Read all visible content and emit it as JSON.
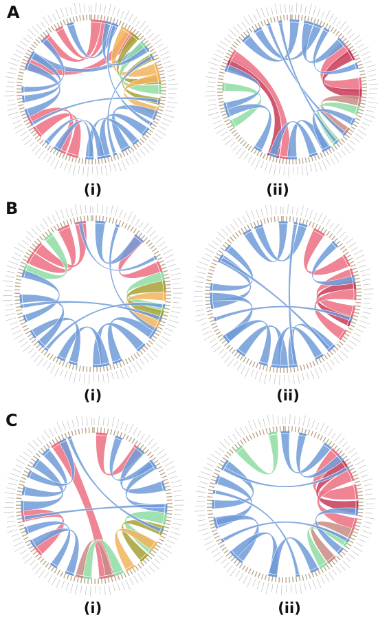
{
  "panels": [
    {
      "letter": "A",
      "diagrams": [
        {
          "label": "(i)",
          "ribbons": [
            {
              "from": 292,
              "to": 36,
              "w": 10,
              "c": "pink"
            },
            {
              "from": 300,
              "to": 50,
              "w": 7,
              "c": "blue"
            },
            {
              "from": 318,
              "to": 4,
              "w": 9,
              "c": "pink"
            },
            {
              "from": 332,
              "to": 12,
              "w": 7,
              "c": "pink"
            },
            {
              "from": 30,
              "to": 72,
              "w": 9,
              "c": "orange"
            },
            {
              "from": 40,
              "to": 82,
              "w": 7,
              "c": "olive"
            },
            {
              "from": 50,
              "to": 90,
              "w": 8,
              "c": "green"
            },
            {
              "from": 62,
              "to": 100,
              "w": 6,
              "c": "olive"
            },
            {
              "from": 80,
              "to": 108,
              "w": 7,
              "c": "orange"
            },
            {
              "from": 112,
              "to": 150,
              "w": 8,
              "c": "blue"
            },
            {
              "from": 128,
              "to": 168,
              "w": 8,
              "c": "blue"
            },
            {
              "from": 140,
              "to": 182,
              "w": 6,
              "c": "blue"
            },
            {
              "from": 196,
              "to": 232,
              "w": 10,
              "c": "pink"
            },
            {
              "from": 206,
              "to": 244,
              "w": 8,
              "c": "pink"
            },
            {
              "from": 172,
              "to": 210,
              "w": 6,
              "c": "blue"
            },
            {
              "from": 250,
              "to": 290,
              "w": 7,
              "c": "blue"
            },
            {
              "from": 262,
              "to": 300,
              "w": 6,
              "c": "blue"
            },
            {
              "from": 270,
              "to": 316,
              "w": 5,
              "c": "blue"
            },
            {
              "from": 342,
              "to": 20,
              "w": 6,
              "c": "blue"
            },
            {
              "from": 14,
              "to": 54,
              "w": 5,
              "c": "blue"
            },
            {
              "from": 20,
              "to": 120,
              "w": 3,
              "c": "blue"
            },
            {
              "from": 240,
              "to": 100,
              "w": 3,
              "c": "blue"
            },
            {
              "from": 160,
              "to": 62,
              "w": 3,
              "c": "blue"
            },
            {
              "from": 220,
              "to": 180,
              "w": 4,
              "c": "blue"
            }
          ]
        },
        {
          "label": "(ii)",
          "ribbons": [
            {
              "from": 52,
              "to": 86,
              "w": 12,
              "c": "pink"
            },
            {
              "from": 60,
              "to": 94,
              "w": 9,
              "c": "crimson"
            },
            {
              "from": 100,
              "to": 128,
              "w": 8,
              "c": "rose"
            },
            {
              "from": 108,
              "to": 140,
              "w": 7,
              "c": "green"
            },
            {
              "from": 292,
              "to": 196,
              "w": 10,
              "c": "crimson"
            },
            {
              "from": 300,
              "to": 186,
              "w": 9,
              "c": "pink"
            },
            {
              "from": 272,
              "to": 240,
              "w": 7,
              "c": "green"
            },
            {
              "from": 318,
              "to": 2,
              "w": 8,
              "c": "blue"
            },
            {
              "from": 330,
              "to": 22,
              "w": 7,
              "c": "blue"
            },
            {
              "from": 14,
              "to": 46,
              "w": 8,
              "c": "blue"
            },
            {
              "from": 150,
              "to": 180,
              "w": 8,
              "c": "blue"
            },
            {
              "from": 162,
              "to": 196,
              "w": 7,
              "c": "blue"
            },
            {
              "from": 210,
              "to": 250,
              "w": 7,
              "c": "blue"
            },
            {
              "from": 256,
              "to": 288,
              "w": 6,
              "c": "blue"
            },
            {
              "from": 340,
              "to": 130,
              "w": 3,
              "c": "blue"
            },
            {
              "from": 350,
              "to": 140,
              "w": 3,
              "c": "blue"
            },
            {
              "from": 118,
              "to": 150,
              "w": 6,
              "c": "blue"
            },
            {
              "from": 30,
              "to": 70,
              "w": 5,
              "c": "blue"
            }
          ]
        }
      ]
    },
    {
      "letter": "B",
      "diagrams": [
        {
          "label": "(i)",
          "ribbons": [
            {
              "from": 300,
              "to": 336,
              "w": 10,
              "c": "pink"
            },
            {
              "from": 310,
              "to": 350,
              "w": 9,
              "c": "pink"
            },
            {
              "from": 290,
              "to": 322,
              "w": 8,
              "c": "green"
            },
            {
              "from": 40,
              "to": 68,
              "w": 9,
              "c": "pink"
            },
            {
              "from": 76,
              "to": 102,
              "w": 8,
              "c": "green"
            },
            {
              "from": 84,
              "to": 108,
              "w": 9,
              "c": "olive"
            },
            {
              "from": 92,
              "to": 116,
              "w": 7,
              "c": "orange"
            },
            {
              "from": 6,
              "to": 40,
              "w": 8,
              "c": "blue"
            },
            {
              "from": 124,
              "to": 160,
              "w": 8,
              "c": "blue"
            },
            {
              "from": 138,
              "to": 176,
              "w": 8,
              "c": "blue"
            },
            {
              "from": 170,
              "to": 206,
              "w": 7,
              "c": "blue"
            },
            {
              "from": 196,
              "to": 236,
              "w": 7,
              "c": "blue"
            },
            {
              "from": 226,
              "to": 266,
              "w": 7,
              "c": "blue"
            },
            {
              "from": 250,
              "to": 286,
              "w": 6,
              "c": "blue"
            },
            {
              "from": 20,
              "to": 120,
              "w": 3,
              "c": "blue"
            },
            {
              "from": 260,
              "to": 110,
              "w": 3,
              "c": "blue"
            },
            {
              "from": 220,
              "to": 100,
              "w": 3,
              "c": "blue"
            },
            {
              "from": 350,
              "to": 60,
              "w": 3,
              "c": "blue"
            }
          ]
        },
        {
          "label": "(ii)",
          "ribbons": [
            {
              "from": 30,
              "to": 62,
              "w": 10,
              "c": "pink"
            },
            {
              "from": 74,
              "to": 104,
              "w": 10,
              "c": "pink"
            },
            {
              "from": 82,
              "to": 112,
              "w": 8,
              "c": "crimson"
            },
            {
              "from": 90,
              "to": 124,
              "w": 9,
              "c": "pink"
            },
            {
              "from": 46,
              "to": 78,
              "w": 6,
              "c": "blue"
            },
            {
              "from": 330,
              "to": 0,
              "w": 7,
              "c": "blue"
            },
            {
              "from": 340,
              "to": 16,
              "w": 7,
              "c": "blue"
            },
            {
              "from": 262,
              "to": 300,
              "w": 7,
              "c": "blue"
            },
            {
              "from": 276,
              "to": 310,
              "w": 6,
              "c": "blue"
            },
            {
              "from": 232,
              "to": 268,
              "w": 7,
              "c": "blue"
            },
            {
              "from": 180,
              "to": 216,
              "w": 8,
              "c": "blue"
            },
            {
              "from": 196,
              "to": 232,
              "w": 7,
              "c": "blue"
            },
            {
              "from": 138,
              "to": 172,
              "w": 7,
              "c": "blue"
            },
            {
              "from": 150,
              "to": 186,
              "w": 7,
              "c": "blue"
            },
            {
              "from": 10,
              "to": 170,
              "w": 3,
              "c": "blue"
            },
            {
              "from": 300,
              "to": 140,
              "w": 3,
              "c": "blue"
            },
            {
              "from": 250,
              "to": 110,
              "w": 3,
              "c": "blue"
            }
          ]
        }
      ]
    },
    {
      "letter": "C",
      "diagrams": [
        {
          "label": "(i)",
          "ribbons": [
            {
              "from": 330,
              "to": 170,
              "w": 12,
              "c": "pink"
            },
            {
              "from": 6,
              "to": 38,
              "w": 9,
              "c": "pink"
            },
            {
              "from": 232,
              "to": 262,
              "w": 10,
              "c": "pink"
            },
            {
              "from": 100,
              "to": 126,
              "w": 10,
              "c": "green"
            },
            {
              "from": 110,
              "to": 136,
              "w": 8,
              "c": "olive"
            },
            {
              "from": 124,
              "to": 150,
              "w": 8,
              "c": "orange"
            },
            {
              "from": 160,
              "to": 186,
              "w": 8,
              "c": "green"
            },
            {
              "from": 168,
              "to": 192,
              "w": 6,
              "c": "rose"
            },
            {
              "from": 40,
              "to": 74,
              "w": 8,
              "c": "blue"
            },
            {
              "from": 56,
              "to": 92,
              "w": 7,
              "c": "blue"
            },
            {
              "from": 20,
              "to": 54,
              "w": 6,
              "c": "blue"
            },
            {
              "from": 270,
              "to": 306,
              "w": 8,
              "c": "blue"
            },
            {
              "from": 282,
              "to": 318,
              "w": 7,
              "c": "blue"
            },
            {
              "from": 296,
              "to": 334,
              "w": 6,
              "c": "blue"
            },
            {
              "from": 200,
              "to": 238,
              "w": 7,
              "c": "blue"
            },
            {
              "from": 214,
              "to": 250,
              "w": 6,
              "c": "blue"
            },
            {
              "from": 340,
              "to": 110,
              "w": 3,
              "c": "blue"
            },
            {
              "from": 260,
              "to": 90,
              "w": 3,
              "c": "blue"
            }
          ]
        },
        {
          "label": "(ii)",
          "ribbons": [
            {
              "from": 46,
              "to": 80,
              "w": 12,
              "c": "pink"
            },
            {
              "from": 56,
              "to": 92,
              "w": 10,
              "c": "crimson"
            },
            {
              "from": 66,
              "to": 106,
              "w": 10,
              "c": "pink"
            },
            {
              "from": 114,
              "to": 140,
              "w": 8,
              "c": "rose"
            },
            {
              "from": 122,
              "to": 148,
              "w": 7,
              "c": "green"
            },
            {
              "from": 320,
              "to": 350,
              "w": 7,
              "c": "green"
            },
            {
              "from": 0,
              "to": 36,
              "w": 7,
              "c": "blue"
            },
            {
              "from": 14,
              "to": 50,
              "w": 6,
              "c": "blue"
            },
            {
              "from": 270,
              "to": 304,
              "w": 7,
              "c": "blue"
            },
            {
              "from": 254,
              "to": 290,
              "w": 7,
              "c": "blue"
            },
            {
              "from": 220,
              "to": 256,
              "w": 7,
              "c": "blue"
            },
            {
              "from": 190,
              "to": 226,
              "w": 7,
              "c": "blue"
            },
            {
              "from": 156,
              "to": 190,
              "w": 7,
              "c": "blue"
            },
            {
              "from": 96,
              "to": 130,
              "w": 6,
              "c": "blue"
            },
            {
              "from": 300,
              "to": 60,
              "w": 3,
              "c": "blue"
            },
            {
              "from": 280,
              "to": 170,
              "w": 3,
              "c": "blue"
            },
            {
              "from": 240,
              "to": 120,
              "w": 3,
              "c": "blue"
            }
          ]
        }
      ]
    }
  ],
  "colors": {
    "blue": "#6f9bd8",
    "pink": "#ec6f83",
    "crimson": "#c83a58",
    "rose": "#c98a84",
    "orange": "#f2b35c",
    "olive": "#a7a135",
    "green": "#8fdca3",
    "track": "#b9a58a",
    "label": "#bdbdbd"
  }
}
